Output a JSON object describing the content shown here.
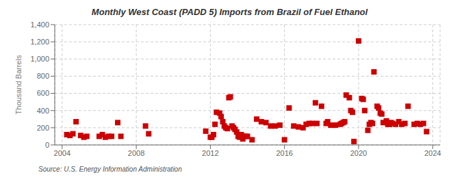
{
  "chart_data": {
    "type": "scatter",
    "title": "Monthly West Coast (PADD 5) Imports from Brazil of Fuel Ethanol",
    "ylabel": "Thousand Barrels",
    "annotations": [
      "Source: U.S. Energy Information Administration"
    ],
    "color": "#cc0000",
    "marker": "square",
    "grid": true,
    "xlim": [
      2003.6,
      2024.4
    ],
    "xticks": [
      2004,
      2008,
      2012,
      2016,
      2020,
      2024
    ],
    "ylim": [
      0,
      1400
    ],
    "yticks": [
      0,
      200,
      400,
      600,
      800,
      {
        "value": 1000,
        "label": "1,000"
      },
      {
        "value": 1200,
        "label": "1,200"
      },
      {
        "value": 1400,
        "label": "1,400"
      }
    ],
    "x": [
      2004.25,
      2004.42,
      2004.58,
      2004.75,
      2005.0,
      2005.17,
      2005.33,
      2006.0,
      2006.17,
      2006.33,
      2006.5,
      2006.67,
      2007.0,
      2007.17,
      2008.5,
      2008.67,
      2011.75,
      2012.0,
      2012.08,
      2012.17,
      2012.25,
      2012.33,
      2012.5,
      2012.58,
      2012.67,
      2012.75,
      2012.83,
      2012.92,
      2013.0,
      2013.08,
      2013.17,
      2013.25,
      2013.33,
      2013.42,
      2013.5,
      2013.58,
      2013.67,
      2013.75,
      2013.83,
      2013.92,
      2014.0,
      2014.25,
      2014.5,
      2014.75,
      2015.0,
      2015.25,
      2015.5,
      2015.75,
      2016.0,
      2016.25,
      2016.5,
      2016.75,
      2017.0,
      2017.17,
      2017.33,
      2017.5,
      2017.67,
      2017.75,
      2018.0,
      2018.25,
      2018.33,
      2018.5,
      2018.67,
      2018.75,
      2019.0,
      2019.08,
      2019.17,
      2019.25,
      2019.33,
      2019.5,
      2019.58,
      2019.67,
      2019.75,
      2020.0,
      2020.17,
      2020.25,
      2020.33,
      2020.5,
      2020.58,
      2020.67,
      2020.75,
      2020.83,
      2021.0,
      2021.08,
      2021.17,
      2021.25,
      2021.33,
      2021.5,
      2021.58,
      2021.67,
      2021.75,
      2021.83,
      2022.0,
      2022.17,
      2022.33,
      2022.5,
      2022.67,
      2023.0,
      2023.17,
      2023.33,
      2023.5,
      2023.67
    ],
    "values": [
      120,
      110,
      130,
      270,
      110,
      90,
      100,
      100,
      120,
      90,
      100,
      100,
      260,
      100,
      220,
      130,
      160,
      90,
      90,
      120,
      240,
      380,
      370,
      330,
      270,
      220,
      200,
      190,
      550,
      560,
      220,
      200,
      180,
      150,
      100,
      90,
      120,
      70,
      100,
      100,
      100,
      60,
      300,
      270,
      260,
      220,
      220,
      230,
      60,
      430,
      220,
      210,
      200,
      240,
      250,
      250,
      490,
      250,
      450,
      250,
      270,
      230,
      230,
      230,
      240,
      250,
      260,
      270,
      580,
      550,
      400,
      380,
      40,
      1210,
      540,
      530,
      400,
      170,
      240,
      260,
      250,
      850,
      450,
      430,
      370,
      360,
      260,
      280,
      240,
      240,
      260,
      250,
      240,
      270,
      240,
      250,
      450,
      240,
      250,
      240,
      250,
      155
    ]
  }
}
